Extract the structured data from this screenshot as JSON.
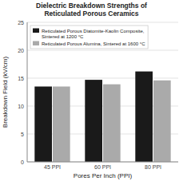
{
  "chart_data": {
    "type": "bar",
    "title": "Dielectric Breakdown Strengths of\nReticulated Porous Ceramics",
    "xlabel": "Pores Per Inch (PPI)",
    "ylabel": "Breakdown Field (kV/cm)",
    "categories": [
      "45 PPI",
      "60 PPI",
      "80 PPI"
    ],
    "series": [
      {
        "name": "Reticulated Porous Diatomite-Kaolin Composite,\nSintered at 1200 °C",
        "color": "#1a1a1a",
        "values": [
          13.5,
          14.7,
          16.2
        ]
      },
      {
        "name": "Reticulated Porous Alumina, Sintered at 1600 °C",
        "color": "#aaaaaa",
        "values": [
          13.5,
          13.9,
          14.6
        ]
      }
    ],
    "ylim": [
      0,
      25
    ],
    "yticks": [
      0,
      5,
      10,
      15,
      20,
      25
    ],
    "grid": true,
    "legend": "upper left"
  }
}
